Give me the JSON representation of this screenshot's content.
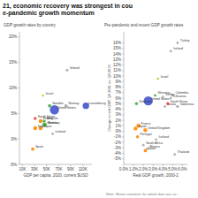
{
  "title": "21, economic recovery was strongest in cou",
  "subtitle": "e-pandemic growth momentum",
  "annotations": [
    "Note: Shows countries for which data was av..."
  ],
  "chart_data": [
    {
      "type": "scatter",
      "title": "GDP growth rates by country",
      "x_label": "GDP per capita, 2020, current $USD",
      "labels": [
        "Ireland",
        "Israel",
        "Luxembourg",
        "Norway",
        "Sweden",
        "United States",
        "South Korea",
        "Belgium",
        "France",
        "Germany",
        "Austria",
        "Japan",
        "Italy",
        "Iceland",
        "Spain"
      ],
      "x": [
        84000,
        44000,
        115000,
        82000,
        55000,
        63000,
        31000,
        46000,
        40000,
        46000,
        48000,
        40000,
        31000,
        60000,
        27000
      ],
      "values": [
        13.5,
        8.5,
        6.5,
        6.5,
        6.5,
        5.7,
        4.0,
        3.5,
        3.5,
        2.8,
        2.8,
        2.1,
        2.1,
        1.0,
        -2.0
      ],
      "sizes": [
        5,
        4,
        28,
        7,
        7,
        55,
        6,
        6,
        10,
        10,
        6,
        10,
        10,
        4,
        7
      ],
      "colors": [
        "#aaaaaa",
        "#cccc44",
        "#4455cc",
        "#aaaaaa",
        "#44aa44",
        "#4455cc",
        "#ee4444",
        "#44aa44",
        "#ff8800",
        "#44aa44",
        "#44aa44",
        "#ff8800",
        "#ff8800",
        "#aaaaaa",
        "#ff8800"
      ],
      "xlim": [
        5000,
        125000
      ],
      "ylim": [
        -5,
        21
      ],
      "xticks": [
        {
          "value": 10000,
          "label": "10K"
        },
        {
          "value": 30000,
          "label": "30K"
        },
        {
          "value": 50000,
          "label": "50K"
        },
        {
          "value": 70000,
          "label": "70K"
        },
        {
          "value": 90000,
          "label": "90K"
        },
        {
          "value": 110000,
          "label": "110K"
        }
      ],
      "yticks": [
        {
          "value": -5,
          "label": "-5%"
        },
        {
          "value": 0,
          "label": "0%"
        },
        {
          "value": 5,
          "label": "5%"
        },
        {
          "value": 10,
          "label": "10%"
        },
        {
          "value": 15,
          "label": "15%"
        },
        {
          "value": 20,
          "label": "20%"
        }
      ],
      "grid": false
    },
    {
      "type": "scatter",
      "title": "Pre-pandemic and recent GDP growth rates",
      "x_label": "Real GDP growth, 2000-2",
      "y_label": "Change in real GDP, Q4 2021 vs. Q4 2019",
      "labels": [
        "Turkey",
        "Ireland",
        "Israel",
        "Colombia",
        "Lithuania",
        "Slovenia",
        "Serbia",
        "United States",
        "South Korea",
        "Latvia",
        "Indonesia",
        "Denmark",
        "France",
        "Japan",
        "United Kingdom",
        "Portugal",
        "South Africa",
        "Mexico",
        "Spain",
        "Iceland",
        "Thailand"
      ],
      "x": [
        5.5,
        4.8,
        3.5,
        5.0,
        4.8,
        3.2,
        4.0,
        2.5,
        4.5,
        4.2,
        5.5,
        1.3,
        1.5,
        1.2,
        2.2,
        1.4,
        2.0,
        2.4,
        2.2,
        3.3,
        5.2
      ],
      "values": [
        16.0,
        14.5,
        9.5,
        6.5,
        6.0,
        6.5,
        6.2,
        5.5,
        5.0,
        4.5,
        4.5,
        5.0,
        1.0,
        0.5,
        0.2,
        -1.0,
        -2.5,
        -3.2,
        -3.5,
        -1.5,
        -4.2
      ],
      "sizes": [
        4,
        4,
        4,
        4,
        4,
        4,
        4,
        55,
        6,
        4,
        6,
        6,
        10,
        10,
        10,
        6,
        4,
        4,
        7,
        4,
        4
      ],
      "colors": [
        "#aaaaaa",
        "#aaaaaa",
        "#cccc44",
        "#aaaaaa",
        "#aaaaaa",
        "#44aa44",
        "#aaaaaa",
        "#4455cc",
        "#ee4444",
        "#aaaaaa",
        "#aaaaaa",
        "#44aa44",
        "#ff8800",
        "#ff8800",
        "#ff8800",
        "#ff8800",
        "#aaaaaa",
        "#aaaaaa",
        "#ff8800",
        "#aaaaaa",
        "#aaaaaa"
      ],
      "xlim": [
        0,
        6.5
      ],
      "ylim": [
        -6,
        18
      ],
      "xticks": [
        {
          "value": 0,
          "label": "0.0%"
        },
        {
          "value": 1,
          "label": "1.0%"
        },
        {
          "value": 2,
          "label": "2.0%"
        },
        {
          "value": 3,
          "label": "3.0%"
        },
        {
          "value": 4,
          "label": "4.0%"
        },
        {
          "value": 5,
          "label": "5.0%"
        },
        {
          "value": 6,
          "label": "6.0%"
        }
      ],
      "yticks": [
        {
          "value": -5,
          "label": "-5%"
        },
        {
          "value": -4,
          "label": "-4%"
        },
        {
          "value": -3,
          "label": "-3%"
        },
        {
          "value": -2,
          "label": "-2%"
        },
        {
          "value": -1,
          "label": "-1%"
        },
        {
          "value": 0,
          "label": "0%"
        },
        {
          "value": 1,
          "label": "1%"
        },
        {
          "value": 2,
          "label": "2%"
        },
        {
          "value": 3,
          "label": "3%"
        },
        {
          "value": 4,
          "label": "4%"
        },
        {
          "value": 5,
          "label": "5%"
        },
        {
          "value": 6,
          "label": "6%"
        },
        {
          "value": 7,
          "label": "7%"
        },
        {
          "value": 8,
          "label": "8%"
        },
        {
          "value": 9,
          "label": "9%"
        },
        {
          "value": 10,
          "label": "10%"
        },
        {
          "value": 11,
          "label": "11%"
        },
        {
          "value": 12,
          "label": "12%"
        },
        {
          "value": 13,
          "label": "13%"
        },
        {
          "value": 14,
          "label": "14%"
        },
        {
          "value": 15,
          "label": "15%"
        },
        {
          "value": 16,
          "label": "16%"
        }
      ],
      "grid": false
    }
  ]
}
